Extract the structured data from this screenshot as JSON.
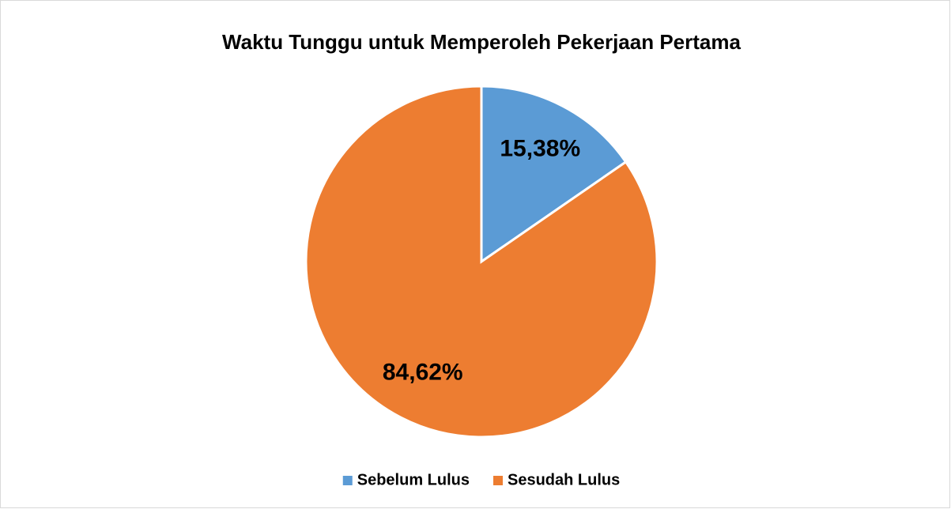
{
  "chart_data": {
    "type": "pie",
    "title": "Waktu Tunggu untuk Memperoleh Pekerjaan Pertama",
    "categories": [
      "Sebelum Lulus",
      "Sesudah Lulus"
    ],
    "values": [
      15.38,
      84.62
    ],
    "value_labels": [
      "15,38%",
      "84,62%"
    ],
    "colors": [
      "#5b9bd5",
      "#ed7d31"
    ],
    "legend": "bottom"
  }
}
